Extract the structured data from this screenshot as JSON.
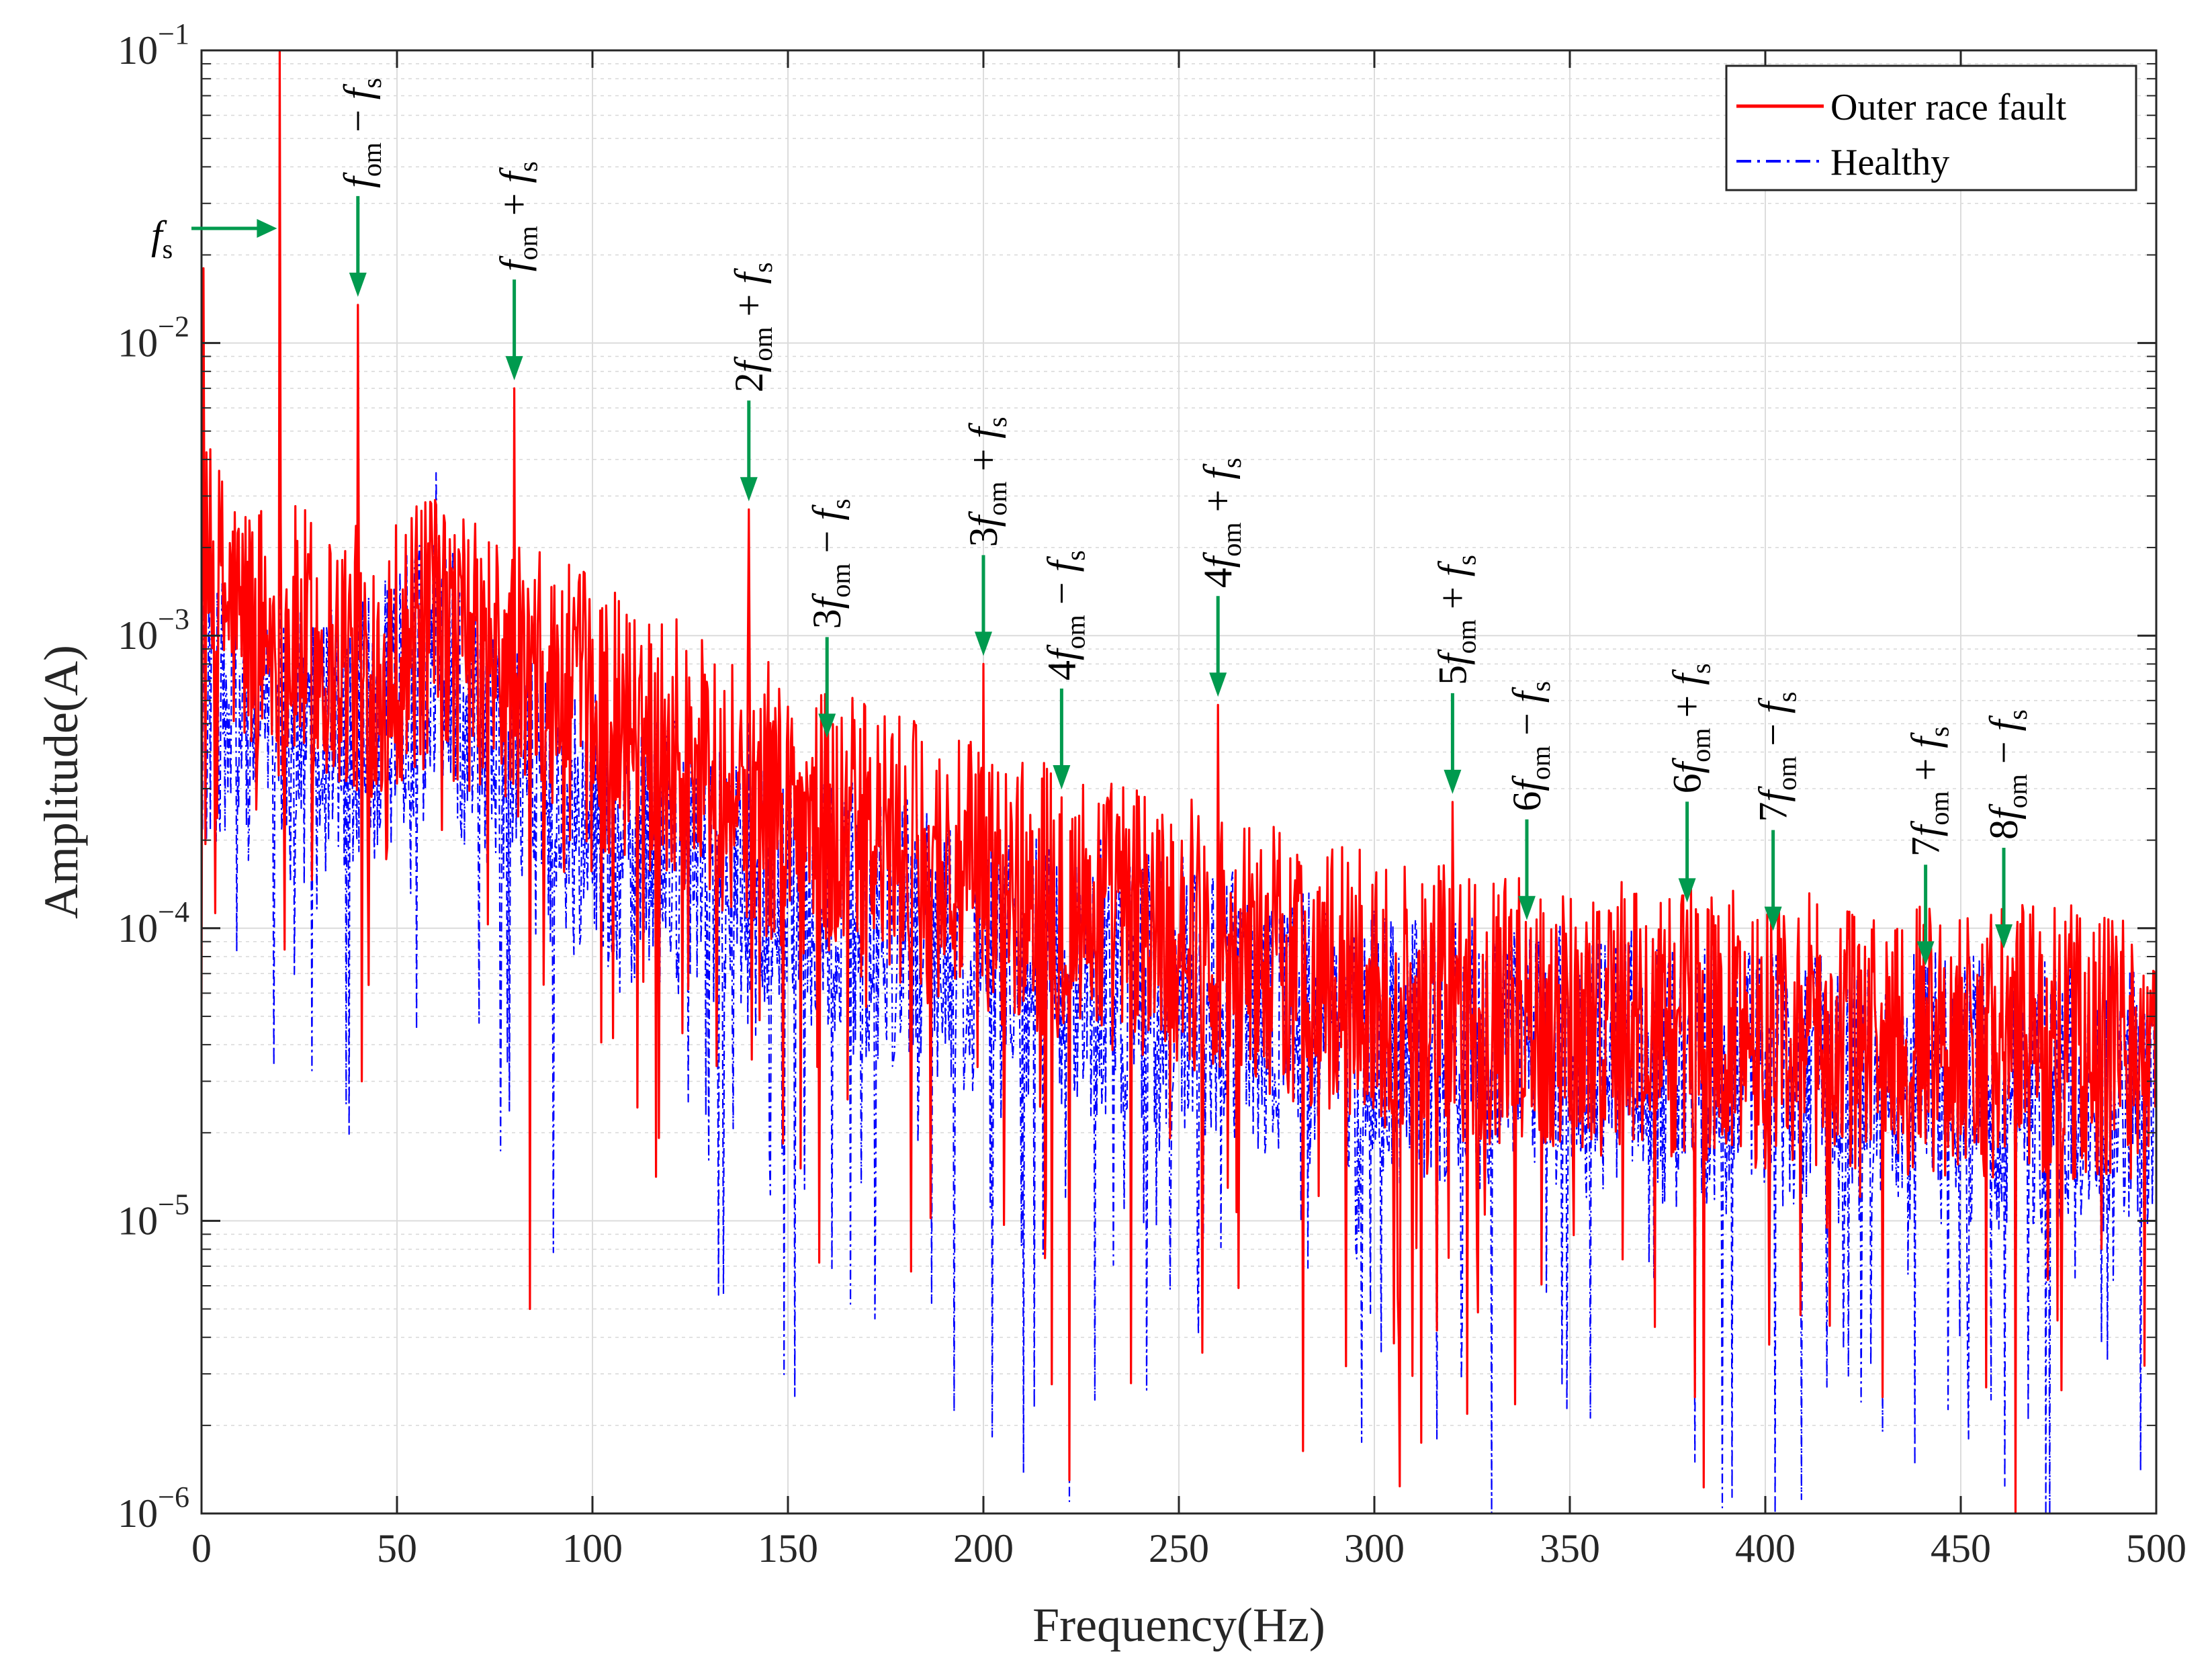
{
  "chart_data": {
    "type": "line",
    "title": "",
    "xlabel": "Frequency(Hz)",
    "ylabel": "Amplitude(A)",
    "xlim": [
      0,
      500
    ],
    "ylim_exponents": [
      -6,
      -1
    ],
    "yscale": "log",
    "grid": true,
    "minor_grid": true,
    "x_ticks": [
      {
        "value": 0,
        "label": "0"
      },
      {
        "value": 50,
        "label": "50"
      },
      {
        "value": 100,
        "label": "100"
      },
      {
        "value": 150,
        "label": "150"
      },
      {
        "value": 200,
        "label": "200"
      },
      {
        "value": 250,
        "label": "250"
      },
      {
        "value": 300,
        "label": "300"
      },
      {
        "value": 350,
        "label": "350"
      },
      {
        "value": 400,
        "label": "400"
      },
      {
        "value": 450,
        "label": "450"
      },
      {
        "value": 500,
        "label": "500"
      }
    ],
    "y_ticks": [
      {
        "exp": -6,
        "base": "10",
        "sup": "−6"
      },
      {
        "exp": -5,
        "base": "10",
        "sup": "−5"
      },
      {
        "exp": -4,
        "base": "10",
        "sup": "−4"
      },
      {
        "exp": -3,
        "base": "10",
        "sup": "−3"
      },
      {
        "exp": -2,
        "base": "10",
        "sup": "−2"
      },
      {
        "exp": -1,
        "base": "10",
        "sup": "−1"
      }
    ],
    "legend": {
      "position": "top-right",
      "entries": [
        {
          "name": "Outer race fault",
          "color": "#ff0000",
          "style": "solid"
        },
        {
          "name": "Healthy",
          "color": "#0000ff",
          "style": "dash-dot"
        }
      ]
    },
    "series": [
      {
        "name": "Outer race fault",
        "color": "#ff0000",
        "baseline": [
          [
            0,
            0.0016
          ],
          [
            10,
            0.0011
          ],
          [
            40,
            0.0008
          ],
          [
            60,
            0.001
          ],
          [
            80,
            0.0007
          ],
          [
            100,
            0.00055
          ],
          [
            120,
            0.00042
          ],
          [
            150,
            0.00025
          ],
          [
            200,
            0.00014
          ],
          [
            250,
            0.0001
          ],
          [
            300,
            6e-05
          ],
          [
            350,
            5e-05
          ],
          [
            400,
            4.5e-05
          ],
          [
            450,
            4.2e-05
          ],
          [
            500,
            4e-05
          ]
        ],
        "peaks": [
          [
            0.5,
            0.018
          ],
          [
            20,
            0.1
          ],
          [
            40,
            0.0135
          ],
          [
            60,
            0.0028
          ],
          [
            80,
            0.007
          ],
          [
            140,
            0.0027
          ],
          [
            160,
            0.00042
          ],
          [
            200,
            0.0008
          ],
          [
            220,
            0.00028
          ],
          [
            260,
            0.00058
          ],
          [
            320,
            0.00027
          ],
          [
            340,
            0.0001
          ],
          [
            380,
            0.000115
          ],
          [
            404,
            9.2e-05
          ],
          [
            442,
            7e-05
          ],
          [
            462,
            8e-05
          ],
          [
            500,
            7e-05
          ]
        ],
        "dips": [
          [
            41,
            3e-05
          ],
          [
            84,
            5e-06
          ],
          [
            158,
            7.2e-06
          ],
          [
            200,
            7.5e-06
          ],
          [
            222,
            1.3e-06
          ],
          [
            260,
            1.4e-06
          ],
          [
            306,
            5.5e-06
          ],
          [
            340,
            3.3e-06
          ],
          [
            382,
            2.5e-06
          ],
          [
            430,
            2.5e-06
          ],
          [
            464,
            1e-06
          ],
          [
            497,
            3.2e-06
          ]
        ]
      },
      {
        "name": "Healthy",
        "color": "#0000ff",
        "baseline": [
          [
            0,
            0.0006
          ],
          [
            20,
            0.0004
          ],
          [
            40,
            0.00045
          ],
          [
            60,
            0.0008
          ],
          [
            80,
            0.0003
          ],
          [
            100,
            0.00022
          ],
          [
            150,
            0.00012
          ],
          [
            200,
            8e-05
          ],
          [
            250,
            6e-05
          ],
          [
            300,
            4e-05
          ],
          [
            350,
            3.5e-05
          ],
          [
            400,
            3e-05
          ],
          [
            450,
            2.8e-05
          ],
          [
            500,
            2.6e-05
          ]
        ],
        "peaks": [
          [
            20,
            0.1
          ],
          [
            40,
            0.0035
          ],
          [
            60,
            0.0036
          ],
          [
            80,
            0.0068
          ],
          [
            140,
            0.0005
          ],
          [
            200,
            0.0003
          ],
          [
            260,
            0.0003
          ]
        ],
        "dips": [
          [
            20,
            1.55e-05
          ],
          [
            37,
            2.5e-05
          ],
          [
            55,
            4.5e-05
          ],
          [
            90,
            7.8e-06
          ],
          [
            166,
            5.2e-06
          ],
          [
            213,
            2.3e-06
          ],
          [
            222,
            1.1e-06
          ],
          [
            260,
            1.2e-06
          ],
          [
            316,
            1.8e-06
          ],
          [
            330,
            1e-06
          ],
          [
            382,
            1.5e-06
          ],
          [
            430,
            1.9e-06
          ],
          [
            452,
            1.8e-06
          ],
          [
            496,
            1.4e-06
          ]
        ]
      }
    ],
    "annotations": [
      {
        "x": 20,
        "text": [
          "",
          "f",
          "s",
          ""
        ],
        "orientation": "horizontal"
      },
      {
        "x": 40,
        "text": [
          "",
          "f",
          "om",
          " − ",
          "f",
          "s"
        ],
        "orientation": "vertical"
      },
      {
        "x": 80,
        "text": [
          "",
          "f",
          "om",
          " + ",
          "f",
          "s"
        ],
        "orientation": "vertical"
      },
      {
        "x": 140,
        "text": [
          "2",
          "f",
          "om",
          " + ",
          "f",
          "s"
        ],
        "orientation": "vertical"
      },
      {
        "x": 160,
        "text": [
          "3",
          "f",
          "om",
          " − ",
          "f",
          "s"
        ],
        "orientation": "vertical"
      },
      {
        "x": 200,
        "text": [
          "3",
          "f",
          "om",
          " + ",
          "f",
          "s"
        ],
        "orientation": "vertical"
      },
      {
        "x": 220,
        "text": [
          "4",
          "f",
          "om",
          " − ",
          "f",
          "s"
        ],
        "orientation": "vertical"
      },
      {
        "x": 260,
        "text": [
          "4",
          "f",
          "om",
          " + ",
          "f",
          "s"
        ],
        "orientation": "vertical"
      },
      {
        "x": 320,
        "text": [
          "5",
          "f",
          "om",
          " + ",
          "f",
          "s"
        ],
        "orientation": "vertical"
      },
      {
        "x": 339,
        "text": [
          "6",
          "f",
          "om",
          " − ",
          "f",
          "s"
        ],
        "orientation": "vertical"
      },
      {
        "x": 380,
        "text": [
          "6",
          "f",
          "om",
          " + ",
          "f",
          "s"
        ],
        "orientation": "vertical"
      },
      {
        "x": 402,
        "text": [
          "7",
          "f",
          "om",
          " − ",
          "f",
          "s"
        ],
        "orientation": "vertical"
      },
      {
        "x": 441,
        "text": [
          "7",
          "f",
          "om",
          " + ",
          "f",
          "s"
        ],
        "orientation": "vertical"
      },
      {
        "x": 461,
        "text": [
          "8",
          "f",
          "om",
          " − ",
          "f",
          "s"
        ],
        "orientation": "vertical"
      }
    ],
    "annotation_arrow_color": "#009a4e"
  }
}
